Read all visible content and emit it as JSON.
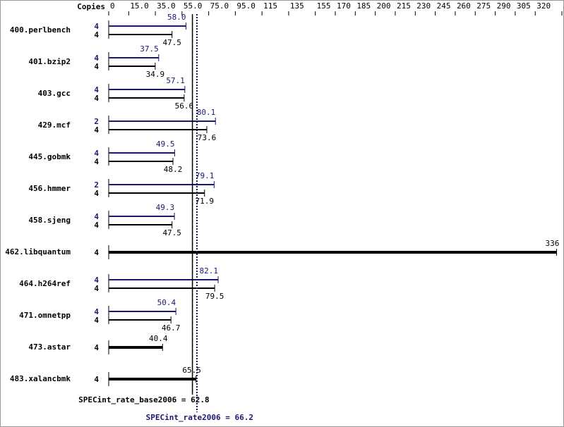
{
  "chart_data": {
    "type": "bar",
    "orientation": "horizontal",
    "axis_label": "Copies",
    "categories": [
      "400.perlbench",
      "401.bzip2",
      "403.gcc",
      "429.mcf",
      "445.gobmk",
      "456.hmmer",
      "458.sjeng",
      "462.libquantum",
      "464.h264ref",
      "471.omnetpp",
      "473.astar",
      "483.xalancbmk"
    ],
    "series": [
      {
        "color": "#191970",
        "copies": [
          4,
          4,
          4,
          2,
          4,
          2,
          4,
          null,
          4,
          4,
          null,
          null
        ],
        "values": [
          58.0,
          37.5,
          57.1,
          80.1,
          49.5,
          79.1,
          49.3,
          null,
          82.1,
          50.4,
          null,
          null
        ],
        "value_labels": [
          "58.0",
          "37.5",
          "57.1",
          "80.1",
          "49.5",
          "79.1",
          "49.3",
          null,
          "82.1",
          "50.4",
          null,
          null
        ]
      },
      {
        "color": "#000000",
        "copies": [
          4,
          4,
          4,
          4,
          4,
          4,
          4,
          4,
          4,
          4,
          4,
          4
        ],
        "values": [
          47.5,
          34.9,
          56.6,
          73.6,
          48.2,
          71.9,
          47.5,
          336,
          79.5,
          46.7,
          40.4,
          65.5
        ],
        "value_labels": [
          "47.5",
          "34.9",
          "56.6",
          "73.6",
          "48.2",
          "71.9",
          "47.5",
          "336",
          "79.5",
          "46.7",
          "40.4",
          "65.5"
        ]
      }
    ],
    "xlim": [
      0,
      340
    ],
    "xticks": [
      0,
      {
        "value": 15,
        "label": "15.0"
      },
      {
        "value": 35,
        "label": "35.0"
      },
      {
        "value": 55,
        "label": "55.0"
      },
      {
        "value": 75,
        "label": "75.0"
      },
      {
        "value": 95,
        "label": "95.0"
      },
      115,
      135,
      155,
      170,
      185,
      200,
      215,
      230,
      245,
      260,
      275,
      290,
      305,
      320,
      340
    ],
    "reference_lines": [
      {
        "value": 62.8,
        "label": "SPECint_rate_base2006 = 62.8",
        "color": "#000000",
        "dashed": false
      },
      {
        "value": 66.2,
        "label": "SPECint_rate2006 = 66.2",
        "color": "#191970",
        "dashed": true
      }
    ]
  }
}
